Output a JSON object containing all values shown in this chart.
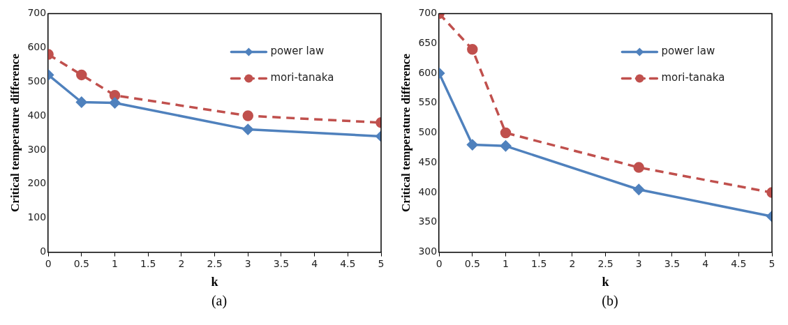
{
  "chart_data": [
    {
      "type": "line",
      "xlabel": "k",
      "ylabel": "Critical temperature difference",
      "annotations": [
        "(a)"
      ],
      "x": [
        0,
        0.5,
        1,
        3,
        5
      ],
      "xlim": [
        0,
        5
      ],
      "xticks": [
        0,
        0.5,
        1,
        1.5,
        2,
        2.5,
        3,
        3.5,
        4,
        4.5,
        5
      ],
      "ylim": [
        0,
        700
      ],
      "yticks": [
        0,
        100,
        200,
        300,
        400,
        500,
        600,
        700
      ],
      "grid": false,
      "legend": "top right",
      "series": [
        {
          "name": "power law",
          "color": "#4f81bd",
          "marker": "diamond",
          "line_style": "solid",
          "values": [
            520,
            440,
            438,
            360,
            340
          ]
        },
        {
          "name": "mori-tanaka",
          "color": "#c0504d",
          "marker": "circle",
          "line_style": "dashed",
          "values": [
            580,
            520,
            460,
            400,
            380
          ]
        }
      ]
    },
    {
      "type": "line",
      "xlabel": "k",
      "ylabel": "Critical temperature difference",
      "annotations": [
        "(b)"
      ],
      "x": [
        0,
        0.5,
        1,
        3,
        5
      ],
      "xlim": [
        0,
        5
      ],
      "xticks": [
        0,
        0.5,
        1,
        1.5,
        2,
        2.5,
        3,
        3.5,
        4,
        4.5,
        5
      ],
      "ylim": [
        300,
        700
      ],
      "yticks": [
        300,
        350,
        400,
        450,
        500,
        550,
        600,
        650,
        700
      ],
      "grid": false,
      "legend": "top right",
      "series": [
        {
          "name": "power law",
          "color": "#4f81bd",
          "marker": "diamond",
          "line_style": "solid",
          "values": [
            600,
            480,
            478,
            405,
            360
          ]
        },
        {
          "name": "mori-tanaka",
          "color": "#c0504d",
          "marker": "circle",
          "line_style": "dashed",
          "values": [
            700,
            640,
            500,
            442,
            400
          ]
        }
      ]
    }
  ]
}
